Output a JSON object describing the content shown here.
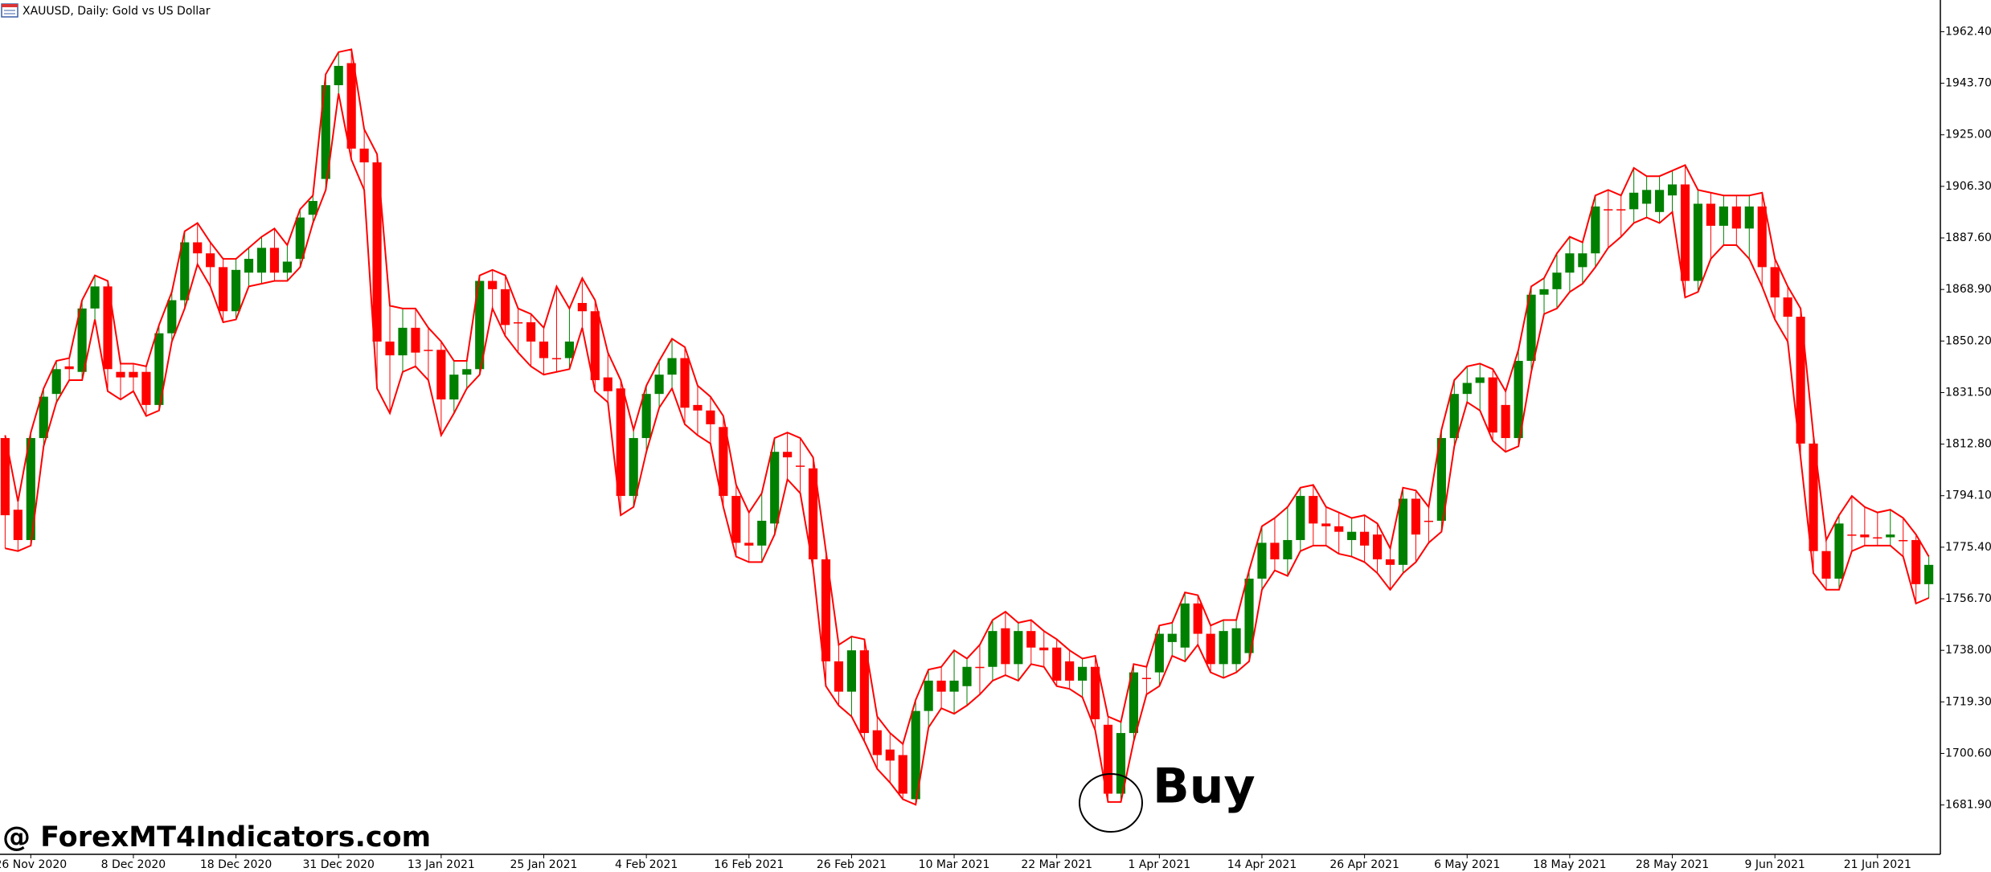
{
  "chart_data": {
    "type": "candlestick",
    "title": "XAUUSD, Daily:  Gold vs US Dollar",
    "annotation": "Buy",
    "watermark": "@ ForexMT4Indicators.com",
    "up_color": "#008000",
    "down_color": "#ff0000",
    "envelope_color": "#ff0000",
    "xlim": [
      -0.4,
      150.9
    ],
    "ylim": [
      1664.0,
      1973.9
    ],
    "yticks": [
      {
        "value": 1962.4,
        "label": "1962.40"
      },
      {
        "value": 1943.7,
        "label": "1943.70"
      },
      {
        "value": 1925.0,
        "label": "1925.00"
      },
      {
        "value": 1906.3,
        "label": "1906.30"
      },
      {
        "value": 1887.6,
        "label": "1887.60"
      },
      {
        "value": 1868.9,
        "label": "1868.90"
      },
      {
        "value": 1850.2,
        "label": "1850.20"
      },
      {
        "value": 1831.5,
        "label": "1831.50"
      },
      {
        "value": 1812.8,
        "label": "1812.80"
      },
      {
        "value": 1794.1,
        "label": "1794.10"
      },
      {
        "value": 1775.4,
        "label": "1775.40"
      },
      {
        "value": 1756.7,
        "label": "1756.70"
      },
      {
        "value": 1738.0,
        "label": "1738.00"
      },
      {
        "value": 1719.3,
        "label": "1719.30"
      },
      {
        "value": 1700.6,
        "label": "1700.60"
      },
      {
        "value": 1681.9,
        "label": "1681.90"
      }
    ],
    "xticks": [
      {
        "value": 2,
        "label": "26 Nov 2020"
      },
      {
        "value": 10,
        "label": "8 Dec 2020"
      },
      {
        "value": 18,
        "label": "18 Dec 2020"
      },
      {
        "value": 26,
        "label": "31 Dec 2020"
      },
      {
        "value": 34,
        "label": "13 Jan 2021"
      },
      {
        "value": 42,
        "label": "25 Jan 2021"
      },
      {
        "value": 50,
        "label": "4 Feb 2021"
      },
      {
        "value": 58,
        "label": "16 Feb 2021"
      },
      {
        "value": 66,
        "label": "26 Feb 2021"
      },
      {
        "value": 74,
        "label": "10 Mar 2021"
      },
      {
        "value": 82,
        "label": "22 Mar 2021"
      },
      {
        "value": 90,
        "label": "1 Apr 2021"
      },
      {
        "value": 98,
        "label": "14 Apr 2021"
      },
      {
        "value": 106,
        "label": "26 Apr 2021"
      },
      {
        "value": 114,
        "label": "6 May 2021"
      },
      {
        "value": 122,
        "label": "18 May 2021"
      },
      {
        "value": 130,
        "label": "28 May 2021"
      },
      {
        "value": 138,
        "label": "9 Jun 2021"
      },
      {
        "value": 146,
        "label": "21 Jun 2021"
      }
    ],
    "open": [
      1815,
      1789,
      1778,
      1815,
      1831,
      1841,
      1839,
      1862,
      1870,
      1839,
      1839,
      1839,
      1827,
      1853,
      1865,
      1886,
      1882,
      1877,
      1861,
      1875,
      1875,
      1884,
      1875,
      1880,
      1896,
      1909,
      1943,
      1951,
      1920,
      1915,
      1850,
      1845,
      1855,
      1847,
      1847,
      1829,
      1838,
      1840,
      1872,
      1869,
      1857,
      1857,
      1850,
      1844,
      1844,
      1864,
      1861,
      1837,
      1833,
      1794,
      1815,
      1831,
      1838,
      1844,
      1827,
      1825,
      1819,
      1794,
      1777,
      1776,
      1784,
      1810,
      1805,
      1804,
      1771,
      1734,
      1723,
      1738,
      1709,
      1702,
      1700,
      1684,
      1716,
      1727,
      1723,
      1725,
      1732,
      1732,
      1746,
      1733,
      1745,
      1739,
      1739,
      1734,
      1727,
      1732,
      1711,
      1686,
      1708,
      1728,
      1730,
      1741,
      1739,
      1755,
      1744,
      1733,
      1733,
      1737,
      1764,
      1777,
      1771,
      1778,
      1794,
      1784,
      1783,
      1778,
      1781,
      1780,
      1771,
      1769,
      1793,
      1785,
      1785,
      1815,
      1831,
      1835,
      1837,
      1827,
      1815,
      1843,
      1867,
      1869,
      1875,
      1877,
      1882,
      1898,
      1898,
      1898,
      1900,
      1897,
      1903,
      1907,
      1872,
      1900,
      1892,
      1899,
      1891,
      1899,
      1877,
      1866,
      1859,
      1813,
      1774,
      1764,
      1780,
      1780,
      1779,
      1779,
      1778,
      1778,
      1762
    ],
    "high": [
      1816,
      1792,
      1817,
      1833,
      1843,
      1844,
      1865,
      1874,
      1872,
      1842,
      1842,
      1841,
      1856,
      1868,
      1890,
      1893,
      1886,
      1880,
      1880,
      1884,
      1888,
      1891,
      1885,
      1898,
      1903,
      1947,
      1955,
      1956,
      1927,
      1918,
      1863,
      1862,
      1862,
      1855,
      1850,
      1843,
      1843,
      1874,
      1876,
      1874,
      1862,
      1860,
      1855,
      1870,
      1862,
      1873,
      1865,
      1846,
      1836,
      1818,
      1834,
      1843,
      1851,
      1848,
      1834,
      1830,
      1823,
      1798,
      1788,
      1795,
      1815,
      1817,
      1815,
      1808,
      1774,
      1740,
      1743,
      1742,
      1714,
      1708,
      1704,
      1720,
      1731,
      1732,
      1738,
      1735,
      1740,
      1749,
      1752,
      1748,
      1749,
      1745,
      1742,
      1738,
      1735,
      1736,
      1714,
      1712,
      1733,
      1732,
      1747,
      1748,
      1759,
      1758,
      1747,
      1749,
      1749,
      1767,
      1783,
      1786,
      1790,
      1797,
      1798,
      1790,
      1788,
      1786,
      1787,
      1784,
      1775,
      1797,
      1796,
      1790,
      1818,
      1836,
      1841,
      1842,
      1840,
      1832,
      1847,
      1870,
      1873,
      1882,
      1888,
      1886,
      1903,
      1905,
      1903,
      1913,
      1910,
      1910,
      1912,
      1914,
      1905,
      1904,
      1903,
      1903,
      1903,
      1904,
      1880,
      1870,
      1862,
      1816,
      1778,
      1787,
      1794,
      1790,
      1788,
      1789,
      1786,
      1780,
      1772
    ],
    "low": [
      1775,
      1774,
      1776,
      1812,
      1828,
      1836,
      1836,
      1858,
      1832,
      1829,
      1832,
      1823,
      1825,
      1850,
      1862,
      1878,
      1870,
      1857,
      1858,
      1870,
      1871,
      1872,
      1872,
      1877,
      1893,
      1905,
      1940,
      1916,
      1905,
      1833,
      1824,
      1839,
      1841,
      1836,
      1816,
      1824,
      1833,
      1838,
      1862,
      1852,
      1846,
      1841,
      1838,
      1839,
      1840,
      1855,
      1832,
      1828,
      1787,
      1790,
      1810,
      1826,
      1833,
      1820,
      1816,
      1813,
      1790,
      1772,
      1770,
      1770,
      1780,
      1800,
      1795,
      1768,
      1725,
      1718,
      1714,
      1705,
      1695,
      1690,
      1684,
      1682,
      1710,
      1717,
      1715,
      1718,
      1722,
      1727,
      1729,
      1727,
      1733,
      1732,
      1725,
      1724,
      1721,
      1709,
      1683,
      1683,
      1705,
      1722,
      1725,
      1736,
      1734,
      1740,
      1730,
      1728,
      1730,
      1734,
      1760,
      1767,
      1765,
      1774,
      1776,
      1776,
      1773,
      1772,
      1770,
      1766,
      1760,
      1766,
      1770,
      1777,
      1781,
      1812,
      1828,
      1825,
      1814,
      1810,
      1812,
      1839,
      1860,
      1862,
      1868,
      1871,
      1877,
      1884,
      1888,
      1893,
      1895,
      1893,
      1897,
      1866,
      1868,
      1880,
      1885,
      1885,
      1880,
      1870,
      1858,
      1850,
      1808,
      1766,
      1760,
      1760,
      1774,
      1776,
      1776,
      1776,
      1772,
      1755,
      1757
    ],
    "close": [
      1787,
      1778,
      1815,
      1830,
      1840,
      1840,
      1862,
      1870,
      1840,
      1837,
      1837,
      1827,
      1853,
      1865,
      1886,
      1882,
      1877,
      1861,
      1876,
      1880,
      1884,
      1875,
      1879,
      1895,
      1901,
      1943,
      1950,
      1920,
      1915,
      1850,
      1845,
      1855,
      1846,
      1847,
      1829,
      1838,
      1840,
      1872,
      1869,
      1856,
      1857,
      1850,
      1844,
      1844,
      1850,
      1861,
      1836,
      1832,
      1794,
      1815,
      1831,
      1838,
      1844,
      1826,
      1825,
      1820,
      1794,
      1777,
      1776,
      1785,
      1810,
      1808,
      1805,
      1771,
      1734,
      1723,
      1738,
      1708,
      1700,
      1698,
      1686,
      1716,
      1727,
      1723,
      1727,
      1732,
      1732,
      1745,
      1733,
      1745,
      1739,
      1738,
      1727,
      1727,
      1732,
      1713,
      1686,
      1708,
      1730,
      1728,
      1744,
      1744,
      1755,
      1744,
      1733,
      1745,
      1746,
      1764,
      1777,
      1771,
      1778,
      1794,
      1784,
      1783,
      1781,
      1781,
      1776,
      1771,
      1769,
      1793,
      1780,
      1785,
      1815,
      1831,
      1835,
      1837,
      1817,
      1815,
      1843,
      1867,
      1869,
      1875,
      1882,
      1882,
      1899,
      1898,
      1898,
      1904,
      1905,
      1905,
      1907,
      1872,
      1900,
      1892,
      1899,
      1891,
      1899,
      1877,
      1866,
      1859,
      1813,
      1774,
      1764,
      1784,
      1780,
      1779,
      1779,
      1780,
      1778,
      1762,
      1769
    ]
  }
}
